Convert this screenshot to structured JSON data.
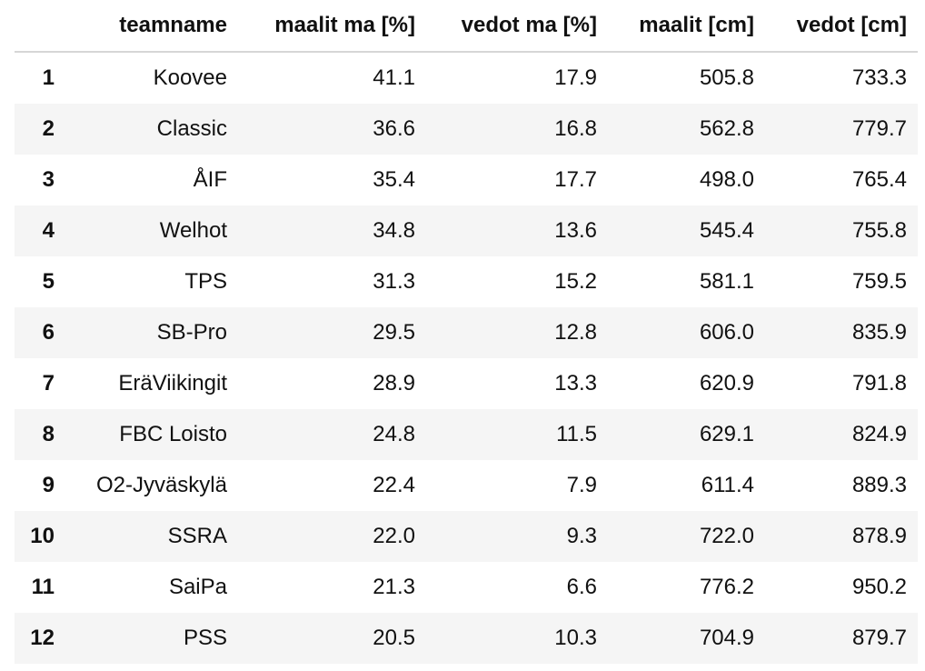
{
  "table": {
    "columns": [
      "",
      "teamname",
      "maalit ma [%]",
      "vedot ma [%]",
      "maalit [cm]",
      "vedot [cm]"
    ],
    "rows": [
      [
        "1",
        "Koovee",
        "41.1",
        "17.9",
        "505.8",
        "733.3"
      ],
      [
        "2",
        "Classic",
        "36.6",
        "16.8",
        "562.8",
        "779.7"
      ],
      [
        "3",
        "ÅIF",
        "35.4",
        "17.7",
        "498.0",
        "765.4"
      ],
      [
        "4",
        "Welhot",
        "34.8",
        "13.6",
        "545.4",
        "755.8"
      ],
      [
        "5",
        "TPS",
        "31.3",
        "15.2",
        "581.1",
        "759.5"
      ],
      [
        "6",
        "SB-Pro",
        "29.5",
        "12.8",
        "606.0",
        "835.9"
      ],
      [
        "7",
        "EräViikingit",
        "28.9",
        "13.3",
        "620.9",
        "791.8"
      ],
      [
        "8",
        "FBC Loisto",
        "24.8",
        "11.5",
        "629.1",
        "824.9"
      ],
      [
        "9",
        "O2-Jyväskylä",
        "22.4",
        "7.9",
        "611.4",
        "889.3"
      ],
      [
        "10",
        "SSRA",
        "22.0",
        "9.3",
        "722.0",
        "878.9"
      ],
      [
        "11",
        "SaiPa",
        "21.3",
        "6.6",
        "776.2",
        "950.2"
      ],
      [
        "12",
        "PSS",
        "20.5",
        "10.3",
        "704.9",
        "879.7"
      ]
    ]
  }
}
